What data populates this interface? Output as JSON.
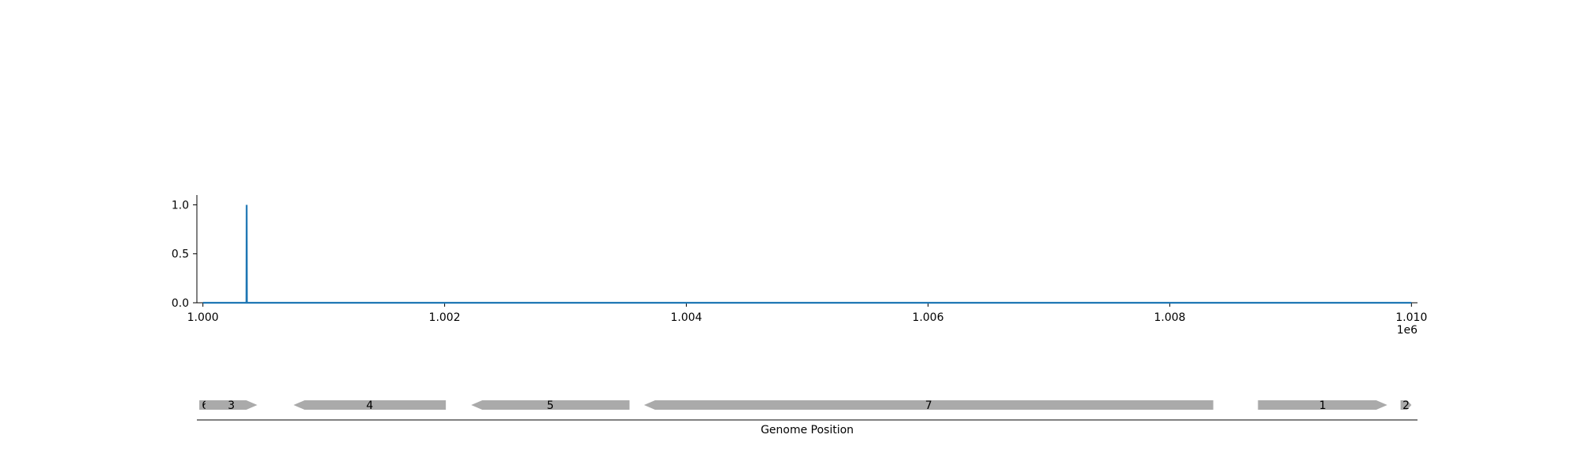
{
  "chart_data": [
    {
      "type": "line",
      "title": "",
      "xlabel": "",
      "ylabel": "",
      "x_offset_label": "1e6",
      "xlim": [
        0.99995,
        1.01005
      ],
      "ylim": [
        0.0,
        1.1
      ],
      "grid": false,
      "x_ticks": [
        1.0,
        1.002,
        1.004,
        1.006,
        1.008,
        1.01
      ],
      "x_tick_labels": [
        "1.000",
        "1.002",
        "1.004",
        "1.006",
        "1.008",
        "1.010"
      ],
      "y_ticks": [
        0.0,
        0.5,
        1.0
      ],
      "y_tick_labels": [
        "0.0",
        "0.5",
        "1.0"
      ],
      "series": [
        {
          "color": "#1f77b4",
          "x": [
            1.0,
            1.00036,
            1.000362,
            1.000364,
            1.01
          ],
          "y": [
            0.0,
            0.0,
            1.0,
            0.0,
            0.0
          ]
        }
      ]
    },
    {
      "type": "gene-track",
      "xlabel": "Genome Position",
      "xlim": [
        0.99995,
        1.01005
      ],
      "feature_color": "#aaaaaa",
      "features": [
        {
          "label": "6",
          "start": 0.99997,
          "end": 1.00007,
          "strand": "+"
        },
        {
          "label": "3",
          "start": 1.00002,
          "end": 1.00045,
          "strand": "+"
        },
        {
          "label": "4",
          "start": 1.00075,
          "end": 1.00201,
          "strand": "-"
        },
        {
          "label": "5",
          "start": 1.00222,
          "end": 1.00353,
          "strand": "-"
        },
        {
          "label": "7",
          "start": 1.00365,
          "end": 1.00836,
          "strand": "-"
        },
        {
          "label": "1",
          "start": 1.00873,
          "end": 1.0098,
          "strand": "+"
        },
        {
          "label": "2",
          "start": 1.00991,
          "end": 1.01,
          "strand": "+"
        }
      ]
    }
  ]
}
